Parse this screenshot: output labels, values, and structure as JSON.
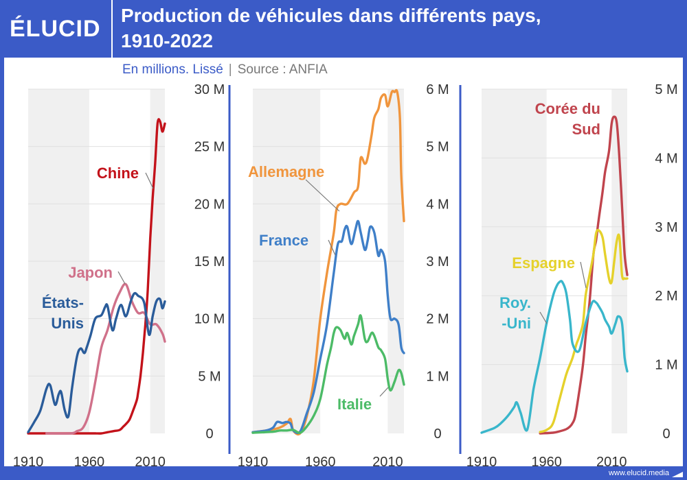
{
  "brand": {
    "logo": "ÉLUCID",
    "website": "www.elucid.media"
  },
  "header": {
    "title_line1": "Production de véhicules dans différents pays,",
    "title_line2": "1910-2022"
  },
  "subtitle": {
    "units": "En millions. Lissé",
    "separator": "|",
    "source": "Source : ANFIA"
  },
  "colors": {
    "brand_blue": "#3b5bc7",
    "band": "#f0f0f0",
    "grid": "#e0e0e0"
  },
  "chart_data": [
    {
      "type": "line",
      "panel": "left",
      "xlim": [
        1910,
        2022
      ],
      "ylim": [
        0,
        30
      ],
      "x_ticks": [
        1910,
        1960,
        2010
      ],
      "x_tick_labels": [
        "1910",
        "1960",
        "2010"
      ],
      "y_ticks": [
        0,
        5,
        10,
        15,
        20,
        25,
        30
      ],
      "y_tick_labels": [
        "0",
        "5 M",
        "10 M",
        "15 M",
        "20 M",
        "25 M",
        "30 M"
      ],
      "series": [
        {
          "name": "Chine",
          "label": "Chine",
          "color": "#c3121a",
          "x": [
            1910,
            1960,
            1965,
            1970,
            1975,
            1980,
            1985,
            1988,
            1990,
            1993,
            1996,
            1999,
            2000,
            2002,
            2004,
            2006,
            2008,
            2010,
            2012,
            2014,
            2016,
            2018,
            2020,
            2022
          ],
          "y": [
            0,
            0,
            0,
            0,
            0.1,
            0.2,
            0.3,
            0.6,
            0.8,
            1.2,
            2.0,
            2.9,
            3.5,
            5.0,
            7.0,
            9.5,
            12.5,
            17.0,
            20.5,
            23.5,
            27.0,
            27.2,
            26.3,
            27.0
          ]
        },
        {
          "name": "Japon",
          "label": "Japon",
          "color": "#d0718a",
          "x": [
            1925,
            1945,
            1950,
            1955,
            1960,
            1965,
            1970,
            1975,
            1980,
            1985,
            1990,
            1995,
            2000,
            2005,
            2010,
            2015,
            2020,
            2022
          ],
          "y": [
            0,
            0,
            0.2,
            0.5,
            1.8,
            4.5,
            7.5,
            9.0,
            11.0,
            12.3,
            13.0,
            11.5,
            10.5,
            10.5,
            9.5,
            9.5,
            8.7,
            8.0
          ]
        },
        {
          "name": "États-Unis",
          "label_lines": [
            "États-",
            "Unis"
          ],
          "color": "#2a5c9a",
          "x": [
            1910,
            1915,
            1920,
            1925,
            1928,
            1932,
            1935,
            1937,
            1940,
            1943,
            1946,
            1950,
            1953,
            1956,
            1958,
            1961,
            1965,
            1970,
            1973,
            1975,
            1979,
            1982,
            1986,
            1990,
            1994,
            1997,
            2000,
            2005,
            2009,
            2012,
            2015,
            2018,
            2020,
            2022
          ],
          "y": [
            0.1,
            1.0,
            2.0,
            3.9,
            4.2,
            2.5,
            3.4,
            3.6,
            2.0,
            1.5,
            4.0,
            6.7,
            7.4,
            7.0,
            7.5,
            8.5,
            10.0,
            10.3,
            11.0,
            11.1,
            9.0,
            10.0,
            11.2,
            10.2,
            11.5,
            12.2,
            12.0,
            11.4,
            8.6,
            10.2,
            11.5,
            11.7,
            10.9,
            11.5
          ]
        }
      ],
      "annotations": [
        "Chine",
        "Japon",
        "États-Unis"
      ]
    },
    {
      "type": "line",
      "panel": "middle",
      "xlim": [
        1910,
        2022
      ],
      "ylim": [
        0,
        6
      ],
      "x_ticks": [
        1910,
        1960,
        2010
      ],
      "x_tick_labels": [
        "1910",
        "1960",
        "2010"
      ],
      "y_ticks": [
        0,
        1,
        2,
        3,
        4,
        5,
        6
      ],
      "y_tick_labels": [
        "0",
        "1 M",
        "2 M",
        "3 M",
        "4 M",
        "5 M",
        "6 M"
      ],
      "series": [
        {
          "name": "Allemagne",
          "label": "Allemagne",
          "color": "#f0953d",
          "x": [
            1910,
            1920,
            1925,
            1930,
            1935,
            1938,
            1940,
            1945,
            1950,
            1955,
            1960,
            1965,
            1970,
            1972,
            1975,
            1980,
            1985,
            1988,
            1990,
            1993,
            1995,
            1998,
            2000,
            2003,
            2005,
            2008,
            2010,
            2013,
            2015,
            2017,
            2019,
            2020,
            2022
          ],
          "y": [
            0.02,
            0.05,
            0.07,
            0.1,
            0.17,
            0.25,
            0.05,
            0,
            0.3,
            0.9,
            2.0,
            2.8,
            3.5,
            3.9,
            4.0,
            4.0,
            4.2,
            4.3,
            4.8,
            4.7,
            4.8,
            5.2,
            5.5,
            5.65,
            5.85,
            5.9,
            5.7,
            5.95,
            5.95,
            5.95,
            5.5,
            4.5,
            3.7
          ]
        },
        {
          "name": "France",
          "label": "France",
          "color": "#3f7fc8",
          "x": [
            1910,
            1920,
            1925,
            1928,
            1932,
            1935,
            1938,
            1940,
            1945,
            1950,
            1955,
            1960,
            1965,
            1970,
            1973,
            1976,
            1978,
            1980,
            1983,
            1986,
            1988,
            1990,
            1993,
            1995,
            1997,
            2000,
            2003,
            2005,
            2008,
            2010,
            2012,
            2015,
            2018,
            2020,
            2022
          ],
          "y": [
            0.02,
            0.05,
            0.1,
            0.2,
            0.18,
            0.2,
            0.17,
            0.05,
            0.03,
            0.35,
            0.7,
            1.3,
            1.9,
            2.8,
            3.3,
            3.35,
            3.55,
            3.6,
            3.3,
            3.55,
            3.7,
            3.5,
            3.2,
            3.35,
            3.6,
            3.5,
            3.1,
            3.2,
            3.0,
            2.4,
            2.0,
            2.0,
            1.9,
            1.5,
            1.4
          ]
        },
        {
          "name": "Italie",
          "label": "Italie",
          "color": "#4cbb67",
          "x": [
            1910,
            1925,
            1930,
            1935,
            1940,
            1945,
            1950,
            1955,
            1960,
            1965,
            1968,
            1970,
            1972,
            1975,
            1978,
            1980,
            1983,
            1985,
            1988,
            1990,
            1993,
            1995,
            1998,
            2000,
            2003,
            2005,
            2008,
            2010,
            2012,
            2015,
            2018,
            2020,
            2022
          ],
          "y": [
            0.01,
            0.03,
            0.05,
            0.05,
            0.06,
            0.01,
            0.12,
            0.3,
            0.6,
            1.2,
            1.5,
            1.75,
            1.85,
            1.8,
            1.65,
            1.75,
            1.55,
            1.7,
            1.9,
            2.05,
            1.65,
            1.6,
            1.75,
            1.7,
            1.5,
            1.45,
            1.3,
            0.95,
            0.75,
            0.9,
            1.1,
            1.05,
            0.85
          ]
        }
      ],
      "annotations": [
        "Allemagne",
        "France",
        "Italie"
      ]
    },
    {
      "type": "line",
      "panel": "right",
      "xlim": [
        1910,
        2022
      ],
      "ylim": [
        0,
        5
      ],
      "x_ticks": [
        1910,
        1960,
        2010
      ],
      "x_tick_labels": [
        "1910",
        "1960",
        "2010"
      ],
      "y_ticks": [
        0,
        1,
        2,
        3,
        4,
        5
      ],
      "y_tick_labels": [
        "0",
        "1 M",
        "2 M",
        "3 M",
        "4 M",
        "5 M"
      ],
      "series": [
        {
          "name": "Corée du Sud",
          "label_lines": [
            "Corée du",
            "Sud"
          ],
          "color": "#c0444d",
          "x": [
            1955,
            1965,
            1970,
            1975,
            1978,
            1980,
            1982,
            1985,
            1988,
            1990,
            1993,
            1996,
            1998,
            2000,
            2003,
            2005,
            2008,
            2010,
            2012,
            2014,
            2016,
            2018,
            2020,
            2022
          ],
          "y": [
            0,
            0.01,
            0.03,
            0.06,
            0.1,
            0.15,
            0.25,
            0.6,
            1.0,
            1.4,
            1.9,
            2.6,
            2.8,
            3.1,
            3.5,
            3.8,
            4.1,
            4.5,
            4.6,
            4.5,
            4.0,
            3.3,
            2.6,
            2.3
          ]
        },
        {
          "name": "Espagne",
          "label": "Espagne",
          "color": "#e5d12b",
          "x": [
            1955,
            1960,
            1965,
            1970,
            1975,
            1978,
            1980,
            1983,
            1985,
            1988,
            1990,
            1993,
            1996,
            1998,
            2000,
            2003,
            2005,
            2008,
            2010,
            2012,
            2014,
            2016,
            2018,
            2020,
            2022
          ],
          "y": [
            0.02,
            0.05,
            0.15,
            0.5,
            0.85,
            1.0,
            1.1,
            1.3,
            1.4,
            1.6,
            2.0,
            2.3,
            2.6,
            2.9,
            2.95,
            2.85,
            2.6,
            2.25,
            2.2,
            2.5,
            2.8,
            2.85,
            2.3,
            2.25,
            2.25
          ]
        },
        {
          "name": "Royaume-Uni",
          "label_lines": [
            "Roy.",
            "-Uni"
          ],
          "color": "#39b6cb",
          "x": [
            1910,
            1920,
            1925,
            1930,
            1935,
            1937,
            1940,
            1945,
            1950,
            1955,
            1960,
            1965,
            1968,
            1970,
            1972,
            1975,
            1978,
            1980,
            1985,
            1990,
            1995,
            1998,
            2000,
            2003,
            2005,
            2008,
            2010,
            2013,
            2015,
            2018,
            2020,
            2022
          ],
          "y": [
            0.01,
            0.08,
            0.15,
            0.25,
            0.38,
            0.45,
            0.3,
            0.05,
            0.65,
            1.1,
            1.6,
            2.0,
            2.15,
            2.2,
            2.2,
            2.05,
            1.65,
            1.3,
            1.2,
            1.6,
            1.9,
            1.9,
            1.85,
            1.75,
            1.65,
            1.55,
            1.45,
            1.6,
            1.7,
            1.6,
            1.1,
            0.9
          ]
        }
      ],
      "annotations": [
        "Corée du Sud",
        "Espagne",
        "Roy.-Uni"
      ]
    }
  ]
}
